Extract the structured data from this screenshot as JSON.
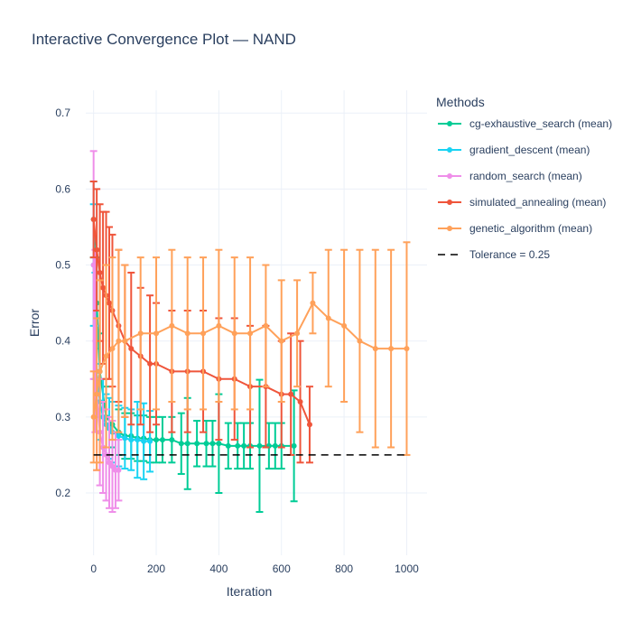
{
  "chart_data": {
    "type": "line",
    "title": "Interactive Convergence Plot — NAND",
    "xlabel": "Iteration",
    "ylabel": "Error",
    "xlim": [
      -25,
      1065
    ],
    "ylim": [
      0.118,
      0.73
    ],
    "xticks": [
      0,
      200,
      400,
      600,
      800,
      1000
    ],
    "yticks": [
      0.2,
      0.3,
      0.4,
      0.5,
      0.6,
      0.7
    ],
    "grid": true,
    "legend_title": "Methods",
    "legend_position": "right",
    "tolerance": {
      "name": "Tolerance = 0.25",
      "value": 0.25,
      "color": "#000000",
      "x": [
        0,
        1000
      ]
    },
    "series": [
      {
        "name": "cg-exhaustive_search (mean)",
        "color": "#00cc96",
        "x": [
          0,
          10,
          20,
          40,
          60,
          80,
          100,
          120,
          140,
          160,
          180,
          200,
          220,
          250,
          280,
          300,
          330,
          360,
          380,
          400,
          430,
          460,
          480,
          500,
          530,
          560,
          580,
          600,
          640
        ],
        "y": [
          0.56,
          0.45,
          0.36,
          0.3,
          0.29,
          0.28,
          0.275,
          0.275,
          0.272,
          0.272,
          0.27,
          0.27,
          0.27,
          0.27,
          0.265,
          0.265,
          0.265,
          0.265,
          0.265,
          0.265,
          0.262,
          0.262,
          0.262,
          0.262,
          0.262,
          0.262,
          0.262,
          0.262,
          0.262
        ],
        "err": [
          0.05,
          0.06,
          0.05,
          0.04,
          0.03,
          0.03,
          0.03,
          0.03,
          0.03,
          0.03,
          0.03,
          0.03,
          0.03,
          0.03,
          0.04,
          0.06,
          0.03,
          0.03,
          0.03,
          0.065,
          0.03,
          0.03,
          0.03,
          0.03,
          0.087,
          0.03,
          0.03,
          0.03,
          0.073
        ]
      },
      {
        "name": "gradient_descent (mean)",
        "color": "#19d3f3",
        "x": [
          0,
          5,
          10,
          20,
          30,
          40,
          50,
          60,
          80,
          100,
          120,
          140,
          160,
          180
        ],
        "y": [
          0.5,
          0.42,
          0.36,
          0.32,
          0.3,
          0.29,
          0.285,
          0.28,
          0.275,
          0.272,
          0.27,
          0.27,
          0.268,
          0.268
        ],
        "err": [
          0.08,
          0.07,
          0.06,
          0.05,
          0.05,
          0.04,
          0.04,
          0.04,
          0.04,
          0.04,
          0.04,
          0.05,
          0.05,
          0.04
        ]
      },
      {
        "name": "random_search (mean)",
        "color": "#ef8ee9",
        "x": [
          0,
          5,
          10,
          20,
          30,
          40,
          50,
          60,
          70,
          80
        ],
        "y": [
          0.5,
          0.4,
          0.33,
          0.28,
          0.26,
          0.25,
          0.24,
          0.235,
          0.23,
          0.23
        ],
        "err": [
          0.15,
          0.12,
          0.1,
          0.07,
          0.06,
          0.06,
          0.06,
          0.06,
          0.05,
          0.04
        ]
      },
      {
        "name": "simulated_annealing (mean)",
        "color": "#ef553b",
        "x": [
          0,
          10,
          20,
          30,
          40,
          50,
          60,
          80,
          100,
          120,
          150,
          180,
          200,
          250,
          300,
          350,
          400,
          450,
          500,
          550,
          600,
          630,
          660,
          690
        ],
        "y": [
          0.56,
          0.52,
          0.49,
          0.47,
          0.46,
          0.45,
          0.44,
          0.42,
          0.4,
          0.39,
          0.38,
          0.37,
          0.37,
          0.36,
          0.36,
          0.36,
          0.35,
          0.35,
          0.34,
          0.34,
          0.33,
          0.33,
          0.32,
          0.29
        ],
        "err": [
          0.05,
          0.08,
          0.09,
          0.1,
          0.11,
          0.1,
          0.1,
          0.1,
          0.1,
          0.1,
          0.09,
          0.09,
          0.08,
          0.08,
          0.08,
          0.08,
          0.08,
          0.08,
          0.08,
          0.08,
          0.07,
          0.08,
          0.08,
          0.05
        ]
      },
      {
        "name": "genetic_algorithm (mean)",
        "color": "#ffa15a",
        "x": [
          0,
          10,
          20,
          40,
          60,
          80,
          100,
          150,
          200,
          250,
          300,
          350,
          400,
          450,
          500,
          550,
          600,
          650,
          700,
          750,
          800,
          850,
          900,
          950,
          1000
        ],
        "y": [
          0.3,
          0.33,
          0.36,
          0.38,
          0.39,
          0.4,
          0.4,
          0.41,
          0.41,
          0.42,
          0.41,
          0.41,
          0.42,
          0.41,
          0.41,
          0.42,
          0.4,
          0.41,
          0.45,
          0.43,
          0.42,
          0.4,
          0.39,
          0.39,
          0.39
        ],
        "err": [
          0.06,
          0.1,
          0.12,
          0.12,
          0.12,
          0.12,
          0.1,
          0.1,
          0.1,
          0.1,
          0.1,
          0.1,
          0.1,
          0.1,
          0.1,
          0.08,
          0.08,
          0.07,
          0.04,
          0.09,
          0.1,
          0.12,
          0.13,
          0.13,
          0.14
        ]
      }
    ]
  }
}
